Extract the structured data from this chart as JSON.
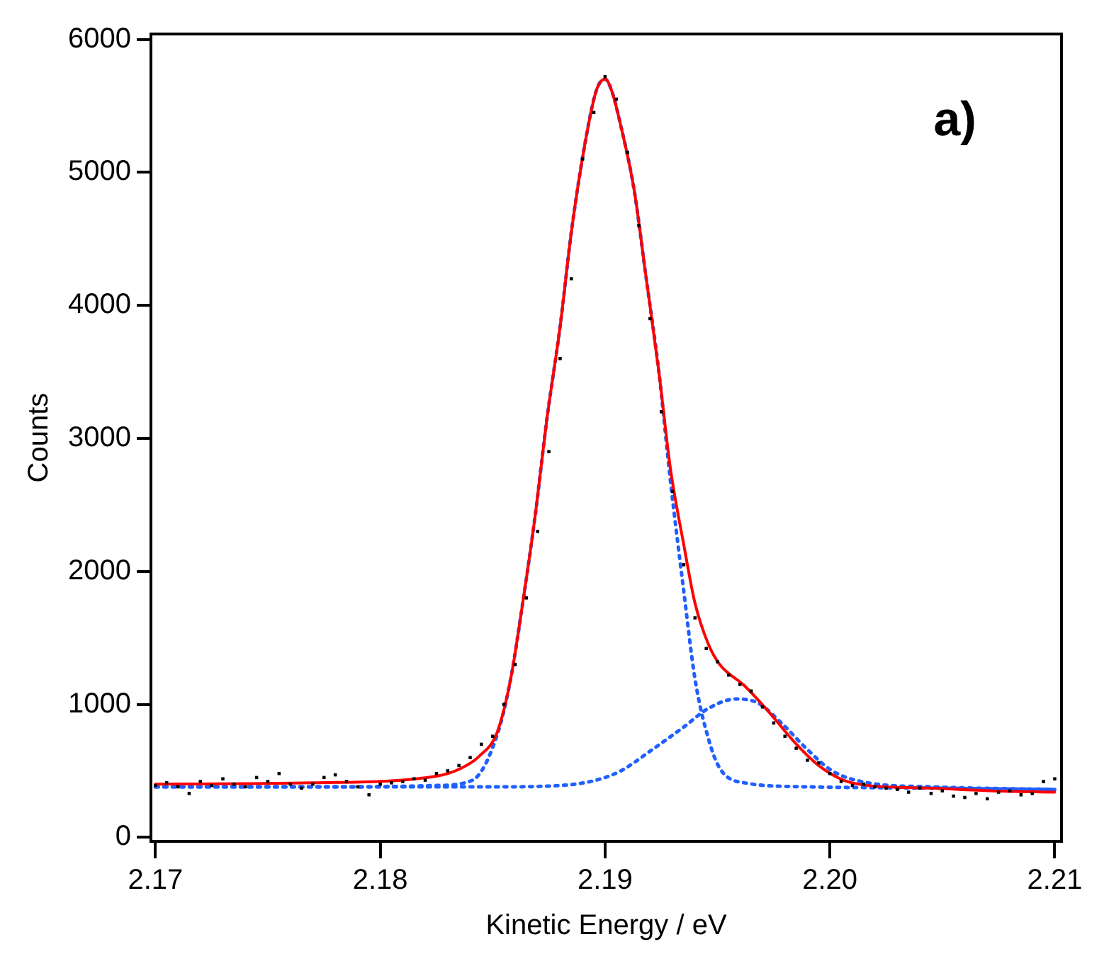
{
  "chart_data": {
    "type": "line",
    "xlabel": "Kinetic Energy / eV",
    "ylabel": "Counts",
    "annotations": [
      "a)"
    ],
    "xlim": [
      2.1698,
      2.2103
    ],
    "ylim": [
      -30,
      6040
    ],
    "xticks": [
      2.17,
      2.18,
      2.19,
      {
        "value": 2.2,
        "label": "2.20"
      },
      2.21
    ],
    "yticks": [
      0,
      1000,
      2000,
      3000,
      4000,
      5000,
      6000
    ],
    "grid": false,
    "legend": false,
    "series": [
      {
        "type": "scatter",
        "marker": "square",
        "color": "#000000",
        "x": [
          2.17,
          2.1705,
          2.171,
          2.1715,
          2.172,
          2.1725,
          2.173,
          2.1735,
          2.174,
          2.1745,
          2.175,
          2.1755,
          2.176,
          2.1765,
          2.177,
          2.1775,
          2.178,
          2.1785,
          2.179,
          2.1795,
          2.18,
          2.1805,
          2.181,
          2.1815,
          2.182,
          2.1825,
          2.183,
          2.1835,
          2.184,
          2.1845,
          2.185,
          2.1855,
          2.186,
          2.1865,
          2.187,
          2.1875,
          2.188,
          2.1885,
          2.189,
          2.1895,
          2.19,
          2.1905,
          2.191,
          2.1915,
          2.192,
          2.1925,
          2.193,
          2.1935,
          2.194,
          2.1945,
          2.195,
          2.1955,
          2.196,
          2.1965,
          2.197,
          2.1975,
          2.198,
          2.1985,
          2.199,
          2.1995,
          2.2,
          2.2005,
          2.201,
          2.2015,
          2.202,
          2.2025,
          2.203,
          2.2035,
          2.204,
          2.2045,
          2.205,
          2.2055,
          2.206,
          2.2065,
          2.207,
          2.2075,
          2.208,
          2.2085,
          2.209,
          2.2095,
          2.21
        ],
        "values": [
          390,
          410,
          380,
          330,
          420,
          390,
          440,
          400,
          380,
          450,
          420,
          480,
          400,
          370,
          400,
          450,
          470,
          420,
          380,
          320,
          400,
          410,
          420,
          440,
          430,
          480,
          500,
          540,
          600,
          700,
          760,
          1000,
          1300,
          1800,
          2300,
          2900,
          3600,
          4200,
          5100,
          5450,
          5720,
          5550,
          5150,
          4600,
          3900,
          3200,
          2600,
          2050,
          1650,
          1420,
          1320,
          1220,
          1150,
          1100,
          980,
          860,
          760,
          670,
          580,
          560,
          480,
          420,
          390,
          400,
          380,
          370,
          360,
          340,
          370,
          330,
          350,
          310,
          300,
          330,
          290,
          340,
          350,
          320,
          330,
          420,
          440
        ]
      },
      {
        "type": "line",
        "line_style": "dotted",
        "color": "#2060ff",
        "x": [
          2.17,
          2.179,
          2.1825,
          2.1841,
          2.1852,
          2.1858,
          2.1863,
          2.1869,
          2.1874,
          2.188,
          2.1885,
          2.1891,
          2.1896,
          2.19,
          2.1903,
          2.1907,
          2.1913,
          2.1918,
          2.1924,
          2.1929,
          2.1935,
          2.194,
          2.1946,
          2.1951,
          2.1962,
          2.199,
          2.2045,
          2.21
        ],
        "values": [
          380,
          380,
          390,
          430,
          770,
          1190,
          1720,
          2430,
          3130,
          3840,
          4550,
          5210,
          5610,
          5700,
          5610,
          5350,
          4860,
          4240,
          3490,
          2690,
          1850,
          1190,
          740,
          520,
          410,
          380,
          370,
          360
        ]
      },
      {
        "type": "line",
        "line_style": "dotted",
        "color": "#2060ff",
        "x": [
          2.17,
          2.1852,
          2.188,
          2.1896,
          2.1907,
          2.1921,
          2.1935,
          2.1946,
          2.1958,
          2.1968,
          2.1979,
          2.199,
          2.2001,
          2.2017,
          2.2045,
          2.21
        ],
        "values": [
          380,
          380,
          390,
          430,
          500,
          660,
          830,
          970,
          1040,
          1010,
          850,
          660,
          500,
          410,
          380,
          360
        ]
      },
      {
        "type": "line",
        "line_style": "solid",
        "color": "#ff0000",
        "x": [
          2.17,
          2.177,
          2.1825,
          2.1836,
          2.1844,
          2.1852,
          2.1858,
          2.1863,
          2.1869,
          2.1874,
          2.188,
          2.1885,
          2.1891,
          2.1896,
          2.19,
          2.1903,
          2.1907,
          2.1913,
          2.1918,
          2.1924,
          2.1929,
          2.1935,
          2.194,
          2.1946,
          2.1951,
          2.1962,
          2.1973,
          2.1984,
          2.1995,
          2.2006,
          2.2017,
          2.2045,
          2.2072,
          2.21
        ],
        "values": [
          400,
          410,
          460,
          520,
          610,
          790,
          1190,
          1720,
          2430,
          3130,
          3840,
          4550,
          5210,
          5610,
          5700,
          5610,
          5350,
          4860,
          4240,
          3490,
          2780,
          2200,
          1760,
          1450,
          1300,
          1140,
          940,
          720,
          540,
          430,
          390,
          370,
          350,
          340
        ]
      }
    ]
  }
}
